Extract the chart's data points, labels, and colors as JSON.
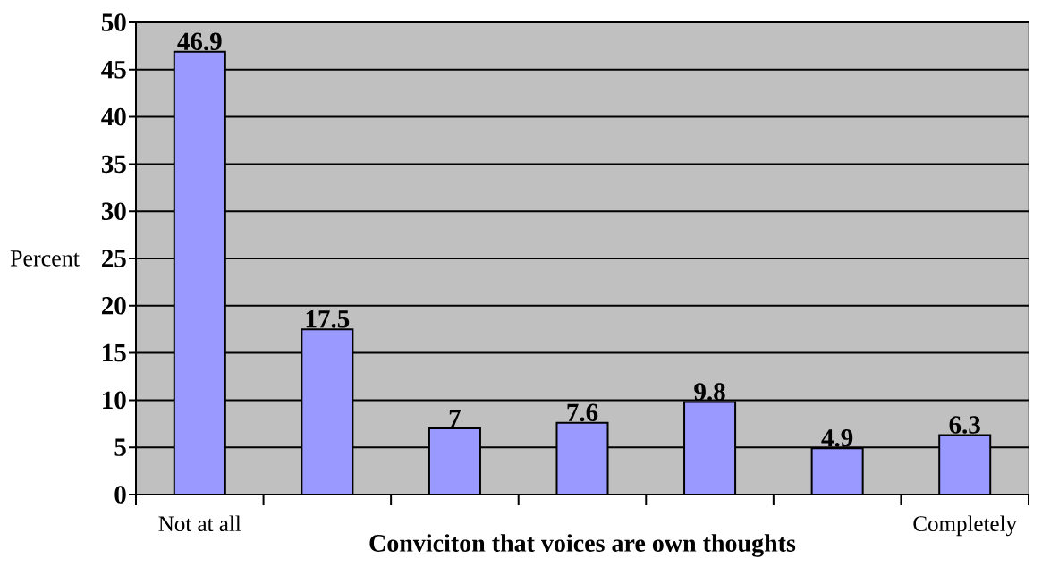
{
  "chart_data": {
    "type": "bar",
    "xlabel": "Conviciton that voices are own thoughts",
    "ylabel": "Percent",
    "categories": [
      "Not at all",
      null,
      null,
      null,
      null,
      null,
      "Completely"
    ],
    "values": [
      46.9,
      17.5,
      7,
      7.6,
      9.8,
      4.9,
      6.3
    ],
    "color": "#9999ff",
    "ylim": [
      0,
      50
    ],
    "yticks": [
      0,
      5,
      10,
      15,
      20,
      25,
      30,
      35,
      40,
      45,
      50
    ],
    "grid": "y",
    "data_labels": true
  }
}
